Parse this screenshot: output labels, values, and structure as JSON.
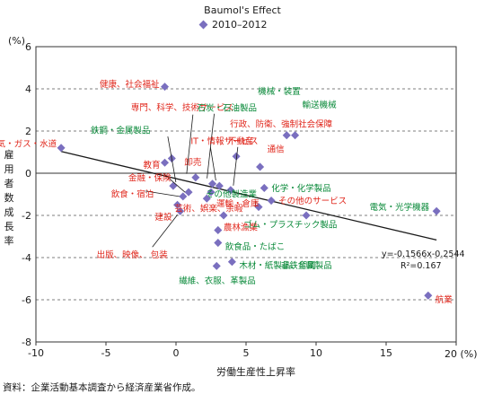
{
  "chart_data": {
    "type": "scatter",
    "title": "Baumol's Effect",
    "legend": {
      "series_name": "2010–2012",
      "placement": "top-center"
    },
    "xlabel": "労働生産性上昇率",
    "ylabel": "雇用者数成長率",
    "x_unit": "20 (%)",
    "y_unit": "(%)",
    "xlim": [
      -10,
      20
    ],
    "ylim": [
      -8,
      6
    ],
    "x_ticks": [
      "-10",
      "-5",
      "0",
      "5",
      "10",
      "15",
      "20"
    ],
    "y_ticks": [
      "6",
      "4",
      "2",
      "0",
      "-2",
      "-4",
      "-6",
      "-8"
    ],
    "grid": "horizontal-dashed",
    "marker_color": "#7a6fbf",
    "trendline": {
      "slope": -0.1566,
      "intercept": -0.2544,
      "equation": "y=-0.1566x-0.2544",
      "r2": "R²=0.167"
    },
    "colors": {
      "red": "#e0261b",
      "green": "#0a8a3a"
    },
    "points": [
      {
        "label": "健康、社会福祉",
        "x": -0.8,
        "y": 4.1,
        "color": "red"
      },
      {
        "label": "電気・ガス・水道",
        "x": -8.2,
        "y": 1.2,
        "color": "red"
      },
      {
        "label": "教育",
        "x": -0.8,
        "y": 0.5,
        "color": "red"
      },
      {
        "label": "卸売",
        "x": -0.3,
        "y": 0.7,
        "color": "red"
      },
      {
        "label": "専門、科学、技術サービス",
        "x": 1.4,
        "y": -0.2,
        "color": "red"
      },
      {
        "label": "鉄鋼・金属製品",
        "x": -0.2,
        "y": -0.6,
        "color": "green"
      },
      {
        "label": "石炭・石油製品",
        "x": 2.6,
        "y": -0.5,
        "color": "green"
      },
      {
        "label": "IT・情報サービス",
        "x": 3.1,
        "y": -0.6,
        "color": "red"
      },
      {
        "label": "不動産",
        "x": 3.9,
        "y": -0.8,
        "color": "red"
      },
      {
        "label": "金融・保険",
        "x": 0.9,
        "y": -0.9,
        "color": "red"
      },
      {
        "label": "飲食・宿泊",
        "x": 0.5,
        "y": -1.1,
        "color": "red"
      },
      {
        "label": "建設",
        "x": 0.1,
        "y": -1.5,
        "color": "red"
      },
      {
        "label": "出版、映像、 包装",
        "x": 0.3,
        "y": -1.8,
        "color": "red"
      },
      {
        "label": "芸術、娯楽、余暇",
        "x": 2.2,
        "y": -1.2,
        "color": "red"
      },
      {
        "label": "その他製造業",
        "x": 2.5,
        "y": -0.9,
        "color": "green"
      },
      {
        "label": "行政、防衛、強制社会保障",
        "x": 4.3,
        "y": 0.8,
        "color": "red"
      },
      {
        "label": "通信",
        "x": 6.0,
        "y": 0.3,
        "color": "red"
      },
      {
        "label": "機械・装置",
        "x": 7.9,
        "y": 1.8,
        "color": "green"
      },
      {
        "label": "輸送機械",
        "x": 8.5,
        "y": 1.8,
        "color": "green"
      },
      {
        "label": "化学・化学製品",
        "x": 6.3,
        "y": -0.7,
        "color": "green"
      },
      {
        "label": "その他のサービス",
        "x": 6.8,
        "y": -1.3,
        "color": "red"
      },
      {
        "label": "運輸・倉庫",
        "x": 5.9,
        "y": -1.6,
        "color": "red"
      },
      {
        "label": "農林漁業",
        "x": 3.4,
        "y": -2.0,
        "color": "red"
      },
      {
        "label": "電気・光学機器",
        "x": 18.6,
        "y": -1.8,
        "color": "green"
      },
      {
        "label": "ゴム・プラスチック製品",
        "x": 9.3,
        "y": -2.0,
        "color": "green"
      },
      {
        "label": "飲食品・たばこ",
        "x": 3.0,
        "y": -3.3,
        "color": "green"
      },
      {
        "label": "非鉄金属製品",
        "x": 3.0,
        "y": -2.7,
        "color": "green"
      },
      {
        "label": "木材・紙製品、印刷",
        "x": 4.0,
        "y": -4.2,
        "color": "green"
      },
      {
        "label": "繊維、衣服、革製品",
        "x": 2.9,
        "y": -4.4,
        "color": "green"
      },
      {
        "label": "航業",
        "x": 18.0,
        "y": -5.8,
        "color": "red"
      }
    ]
  },
  "source_note": "資料：企業活動基本調査から経済産業省作成。"
}
